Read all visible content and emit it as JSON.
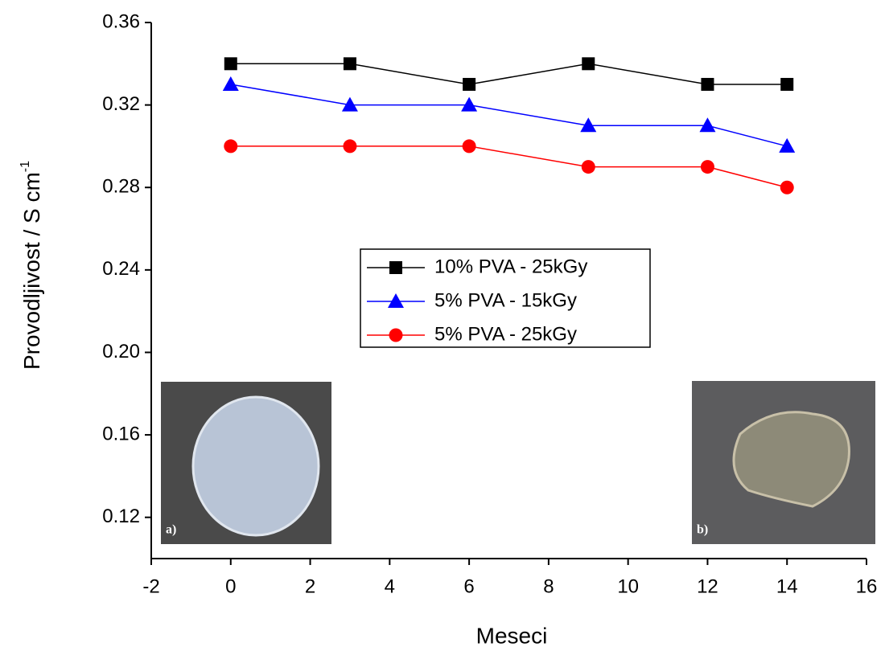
{
  "chart_data": {
    "type": "line",
    "x": [
      0,
      3,
      6,
      9,
      12,
      14
    ],
    "series": [
      {
        "name": "10% PVA - 25kGy",
        "color": "#000000",
        "marker": "square",
        "values": [
          0.34,
          0.34,
          0.33,
          0.34,
          0.33,
          0.33
        ]
      },
      {
        "name": "5% PVA - 15kGy",
        "color": "#0000ff",
        "marker": "triangle",
        "values": [
          0.33,
          0.32,
          0.32,
          0.31,
          0.31,
          0.3
        ]
      },
      {
        "name": "5% PVA - 25kGy",
        "color": "#ff0000",
        "marker": "circle",
        "values": [
          0.3,
          0.3,
          0.3,
          0.29,
          0.29,
          0.28
        ]
      }
    ],
    "xlabel": "Meseci",
    "ylabel": "Provodljivost / S cm",
    "ylabel_sup": "-1",
    "xlim": [
      -2,
      16
    ],
    "xticks": [
      -2,
      0,
      2,
      4,
      6,
      8,
      10,
      12,
      14,
      16
    ],
    "ylim": [
      0.1,
      0.36
    ],
    "yticks": [
      0.12,
      0.16,
      {
        "value": 0.2,
        "label": "0.20"
      },
      0.24,
      0.28,
      0.32,
      0.36
    ],
    "insets": [
      {
        "label": "a)"
      },
      {
        "label": "b)"
      }
    ]
  }
}
